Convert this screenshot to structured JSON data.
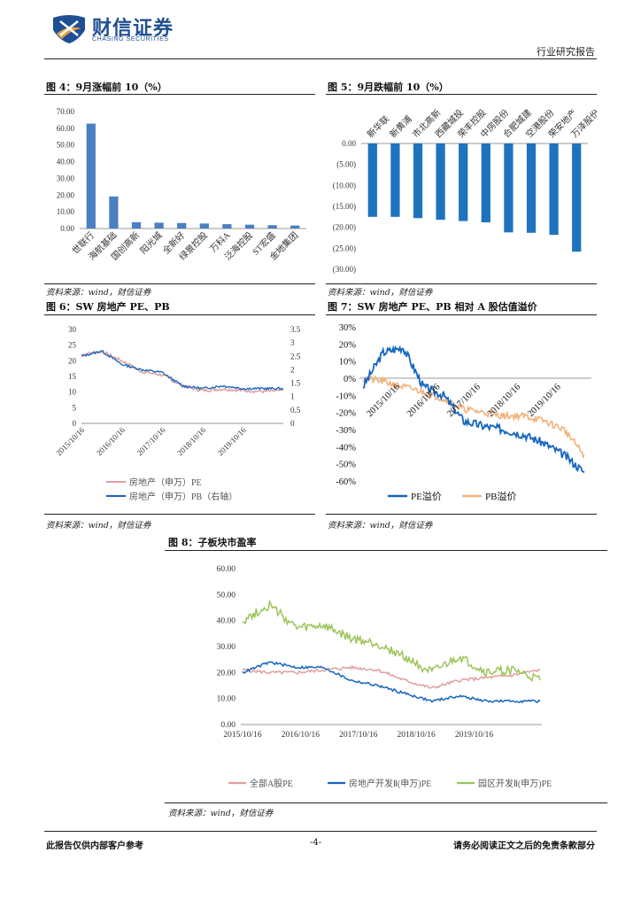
{
  "header": {
    "company": "财信证券",
    "company_en": "CHASING SECURITIES",
    "report_type": "行业研究报告"
  },
  "figures": {
    "f4": {
      "title": "图 4：9月涨幅前 10（%）",
      "source": "资料来源：wind，财信证券"
    },
    "f5": {
      "title": "图 5：9月跌幅前 10（%）",
      "source": "资料来源：wind，财信证券"
    },
    "f6": {
      "title": "图 6：SW 房地产 PE、PB",
      "source": "资料来源：wind，财信证券"
    },
    "f7": {
      "title": "图 7：SW 房地产 PE、PB 相对 A 股估值溢价",
      "source": "资料来源：wind，财信证券"
    },
    "f8": {
      "title": "图 8：子板块市盈率",
      "source": "资料来源：wind，财信证券"
    }
  },
  "footer": {
    "left": "此报告仅供内部客户参考",
    "page": "-4-",
    "right": "请务必阅读正文之后的免责条款部分"
  },
  "colors": {
    "bar": "#4a7fc1",
    "bar_dark": "#1e73be",
    "pe_blue": "#1565c0",
    "pink": "#e0a0a0",
    "orange": "#f2b27a",
    "green": "#9bc45a"
  },
  "chart_data": [
    {
      "id": "f4",
      "type": "bar",
      "categories": [
        "世联行",
        "海航基础",
        "国创高新",
        "阳光城",
        "全新好",
        "绿景控股",
        "万科A",
        "泛海控股",
        "ST宏盛",
        "金地集团"
      ],
      "values": [
        62.8,
        19.2,
        3.8,
        3.5,
        3.3,
        3.0,
        2.6,
        2.3,
        2.0,
        1.8
      ],
      "ylim": [
        0,
        70
      ],
      "yticks": [
        "0.00",
        "10.00",
        "20.00",
        "30.00",
        "40.00",
        "50.00",
        "60.00",
        "70.00"
      ],
      "grid": false
    },
    {
      "id": "f5",
      "type": "bar",
      "categories": [
        "新华联",
        "新黄浦",
        "市北高新",
        "西藏城投",
        "荣丰控股",
        "中房股份",
        "合肥城建",
        "空港股份",
        "荣安地产",
        "万泽股份"
      ],
      "values": [
        -17.5,
        -17.5,
        -17.8,
        -18.2,
        -18.5,
        -18.8,
        -21.2,
        -21.3,
        -21.8,
        -25.8
      ],
      "ylim": [
        -30,
        0
      ],
      "yticks": [
        "0.00",
        "(5.00)",
        "(10.00)",
        "(15.00)",
        "(20.00)",
        "(25.00)",
        "(30.00)"
      ],
      "grid": false
    },
    {
      "id": "f6",
      "type": "line",
      "x": [
        "2015/10/16",
        "2016/4/16",
        "2016/10/16",
        "2017/4/16",
        "2017/10/16",
        "2018/4/16",
        "2018/10/16",
        "2019/4/16",
        "2019/10/16",
        "2020/4/16",
        "2020/9/30"
      ],
      "xticks": [
        "2015/10/16",
        "2016/10/16",
        "2017/10/16",
        "2018/10/16",
        "2019/10/16"
      ],
      "ylim": [
        0,
        30
      ],
      "yticks": [
        "0",
        "5",
        "10",
        "15",
        "20",
        "25",
        "30"
      ],
      "y2lim": [
        0,
        3.5
      ],
      "y2ticks": [
        "0",
        "0.5",
        "1",
        "1.5",
        "2",
        "2.5",
        "3",
        "3.5"
      ],
      "series": [
        {
          "name": "房地产（申万）PE",
          "axis": "left",
          "values": [
            22,
            23,
            20,
            16.5,
            15.5,
            12,
            10.5,
            11,
            10.5,
            10.2,
            10.5
          ]
        },
        {
          "name": "房地产（申万）PB（右轴）",
          "axis": "right",
          "values": [
            2.5,
            2.7,
            2.2,
            2.0,
            1.9,
            1.4,
            1.3,
            1.4,
            1.3,
            1.3,
            1.3
          ]
        }
      ]
    },
    {
      "id": "f7",
      "type": "line",
      "x": [
        "2015/10/16",
        "2016/1/16",
        "2016/4/16",
        "2016/10/16",
        "2017/4/16",
        "2017/10/16",
        "2018/4/16",
        "2018/10/16",
        "2019/4/16",
        "2019/10/16",
        "2020/4/16",
        "2020/9/30"
      ],
      "xticks": [
        "2015/10/16",
        "2016/10/16",
        "2017/10/16",
        "2018/10/16",
        "2019/10/16"
      ],
      "ylim": [
        -60,
        30
      ],
      "yticks": [
        "30%",
        "20%",
        "10%",
        "0%",
        "-10%",
        "-20%",
        "-30%",
        "-40%",
        "-50%",
        "-60%"
      ],
      "series": [
        {
          "name": "PE溢价",
          "values": [
            -5,
            15,
            18,
            -5,
            -10,
            -25,
            -28,
            -30,
            -33,
            -38,
            -45,
            -55
          ]
        },
        {
          "name": "PB溢价",
          "values": [
            0,
            -2,
            -5,
            -8,
            -12,
            -18,
            -20,
            -22,
            -22,
            -25,
            -30,
            -45
          ]
        }
      ]
    },
    {
      "id": "f8",
      "type": "line",
      "x": [
        "2015/10/16",
        "2016/1/16",
        "2016/4/16",
        "2016/10/16",
        "2017/4/16",
        "2017/10/16",
        "2018/4/16",
        "2018/10/16",
        "2019/4/16",
        "2019/10/16",
        "2020/4/16",
        "2020/9/30"
      ],
      "xticks": [
        "2015/10/16",
        "2016/10/16",
        "2017/10/16",
        "2018/10/16",
        "2019/10/16"
      ],
      "ylim": [
        0,
        60
      ],
      "yticks": [
        "0.00",
        "10.00",
        "20.00",
        "30.00",
        "40.00",
        "50.00",
        "60.00"
      ],
      "series": [
        {
          "name": "全部A股PE",
          "values": [
            21,
            20,
            20,
            21,
            22,
            21,
            17,
            14,
            17,
            18,
            19,
            21
          ]
        },
        {
          "name": "房地产开发Ⅱ(申万)PE",
          "values": [
            20,
            24,
            22,
            22,
            17,
            15,
            12,
            9,
            11,
            9,
            9,
            9
          ]
        },
        {
          "name": "园区开发Ⅱ(申万)PE",
          "values": [
            40,
            46,
            37,
            38,
            33,
            31,
            26,
            20,
            26,
            20,
            21,
            17
          ]
        }
      ]
    }
  ]
}
